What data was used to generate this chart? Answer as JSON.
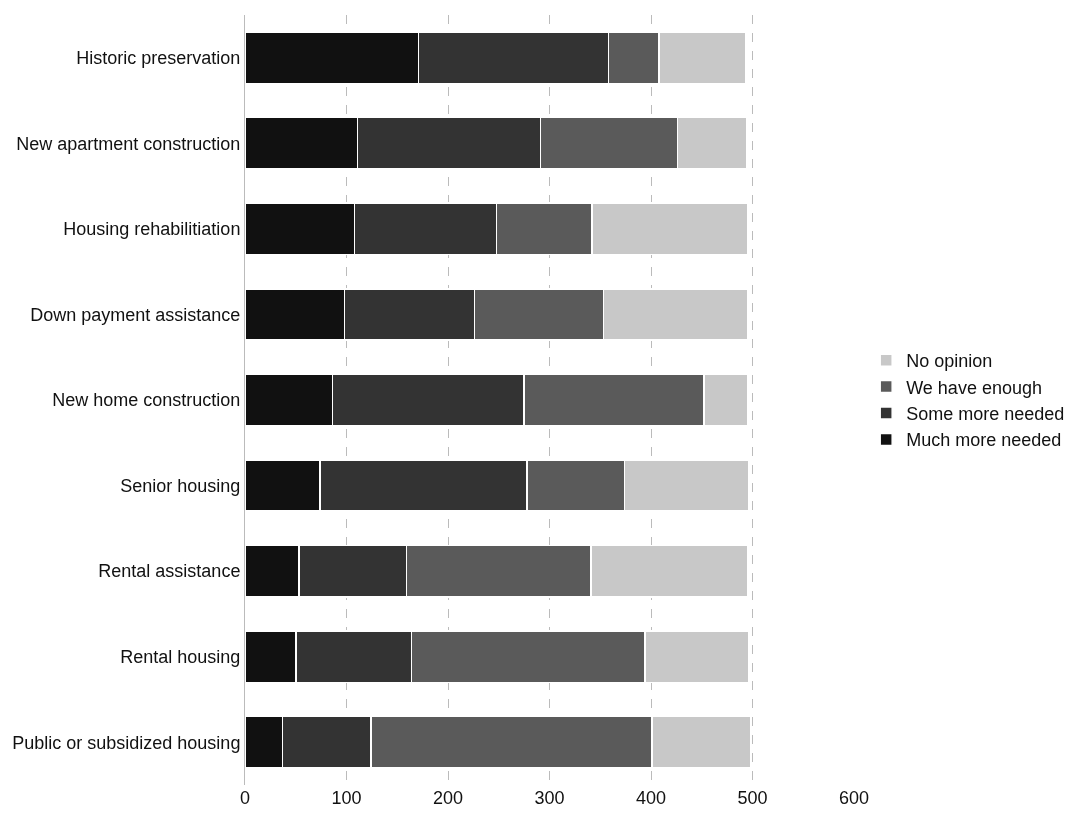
{
  "chart_data": {
    "type": "bar",
    "orientation": "horizontal",
    "stacked": true,
    "categories": [
      "Historic preservation",
      "New apartment construction",
      "Housing rehabilitiation",
      "Down payment assistance",
      "New home construction",
      "Senior housing",
      "Rental assistance",
      "Rental housing",
      "Public or subsidized housing"
    ],
    "series": [
      {
        "name": "Much more needed",
        "color": "#111111",
        "values": [
          171,
          111,
          108,
          98,
          86,
          74,
          53,
          50,
          37
        ]
      },
      {
        "name": "Some more needed",
        "color": "#333333",
        "values": [
          187,
          180,
          140,
          128,
          189,
          204,
          106,
          114,
          87
        ]
      },
      {
        "name": "We have enough",
        "color": "#5a5a5a",
        "values": [
          50,
          135,
          94,
          127,
          177,
          96,
          182,
          230,
          277
        ]
      },
      {
        "name": "No opinion",
        "color": "#c8c8c8",
        "values": [
          85,
          68,
          153,
          142,
          43,
          122,
          154,
          102,
          97
        ]
      }
    ],
    "xlim": [
      0,
      600
    ],
    "xticks": [
      0,
      100,
      200,
      300,
      400,
      500,
      600
    ],
    "grid": "x",
    "legend": "right"
  }
}
